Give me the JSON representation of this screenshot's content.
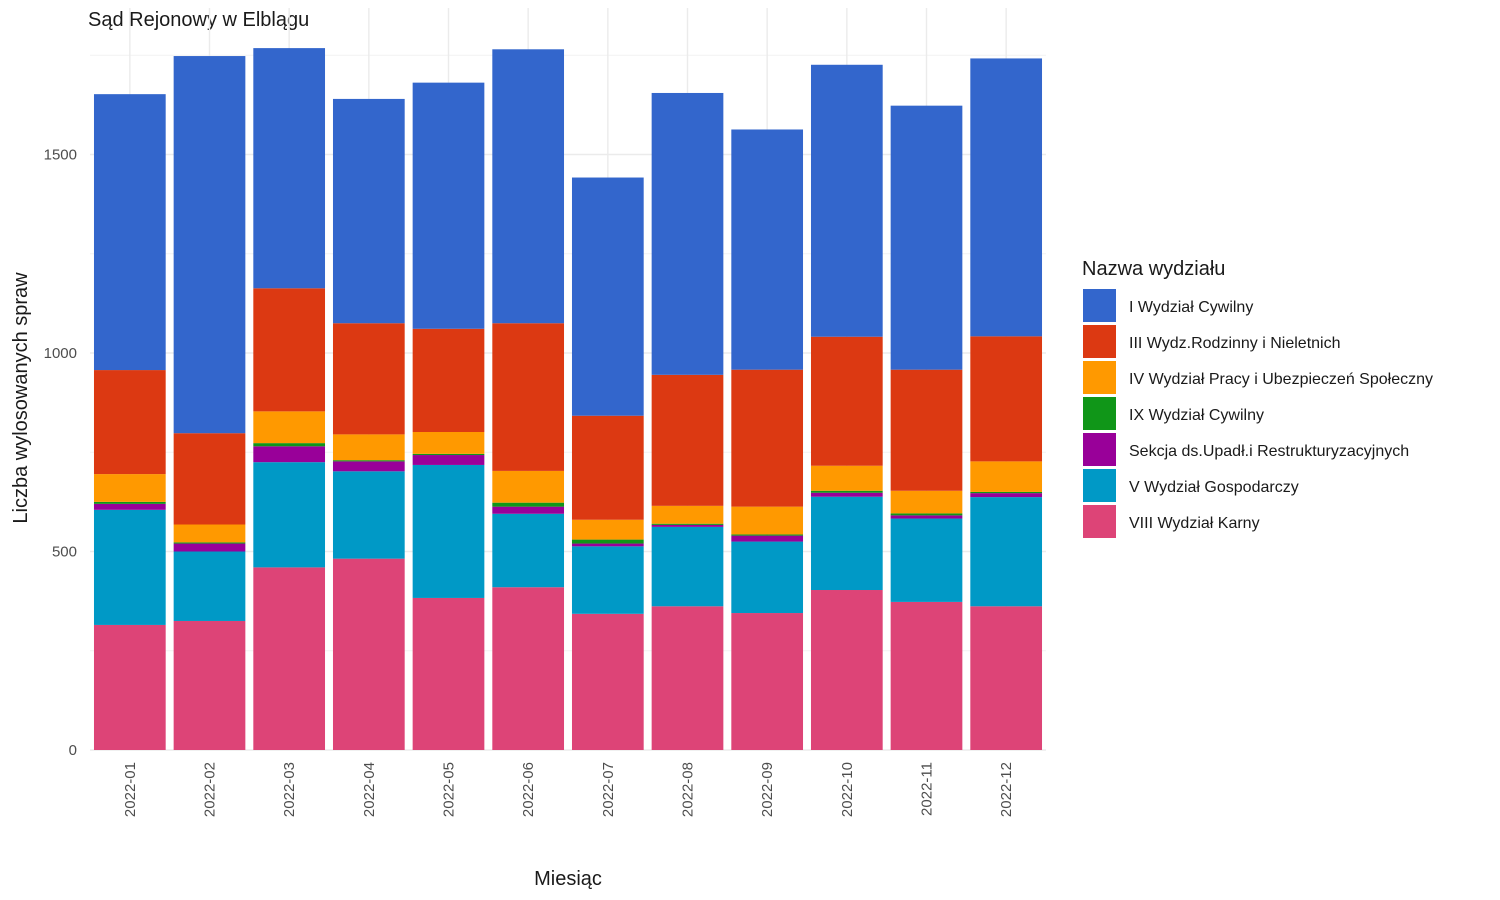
{
  "chart_data": {
    "type": "bar",
    "stacked": true,
    "title": "Sąd Rejonowy w Elblągu",
    "xlabel": "Miesiąc",
    "ylabel": "Liczba wylosowanych spraw",
    "ylim": [
      0,
      1800
    ],
    "yticks": [
      0,
      500,
      1000,
      1500
    ],
    "grid": true,
    "legend_position": "right",
    "legend_title": "Nazwa wydziału",
    "categories": [
      "2022-01",
      "2022-02",
      "2022-03",
      "2022-04",
      "2022-05",
      "2022-06",
      "2022-07",
      "2022-08",
      "2022-09",
      "2022-10",
      "2022-11",
      "2022-12"
    ],
    "series": [
      {
        "name": "I Wydział Cywilny",
        "color": "#3366CC",
        "values": [
          695,
          950,
          605,
          565,
          620,
          690,
          600,
          710,
          605,
          685,
          665,
          700
        ]
      },
      {
        "name": "III Wydz.Rodzinny i Nieletnich",
        "color": "#DC3912",
        "values": [
          262,
          230,
          310,
          280,
          260,
          372,
          262,
          330,
          345,
          325,
          305,
          315
        ]
      },
      {
        "name": "IV Wydział Pracy i Ubezpieczeń Społeczny",
        "color": "#FF9900",
        "values": [
          70,
          45,
          80,
          65,
          55,
          80,
          50,
          45,
          70,
          63,
          57,
          77
        ]
      },
      {
        "name": "IX Wydział Cywilny",
        "color": "#109618",
        "values": [
          5,
          3,
          8,
          3,
          3,
          10,
          10,
          3,
          3,
          5,
          5,
          3
        ]
      },
      {
        "name": "Sekcja ds.Upadł.i Restrukturyzacyjnych",
        "color": "#990099",
        "values": [
          15,
          20,
          40,
          25,
          25,
          18,
          7,
          5,
          15,
          10,
          8,
          10
        ]
      },
      {
        "name": "V Wydział Gospodarczy",
        "color": "#0099C6",
        "values": [
          290,
          175,
          265,
          220,
          335,
          185,
          170,
          200,
          180,
          235,
          210,
          275
        ]
      },
      {
        "name": "VIII Wydział Karny",
        "color": "#DD4477",
        "values": [
          315,
          325,
          460,
          482,
          383,
          410,
          343,
          362,
          345,
          403,
          373,
          362
        ]
      }
    ]
  }
}
